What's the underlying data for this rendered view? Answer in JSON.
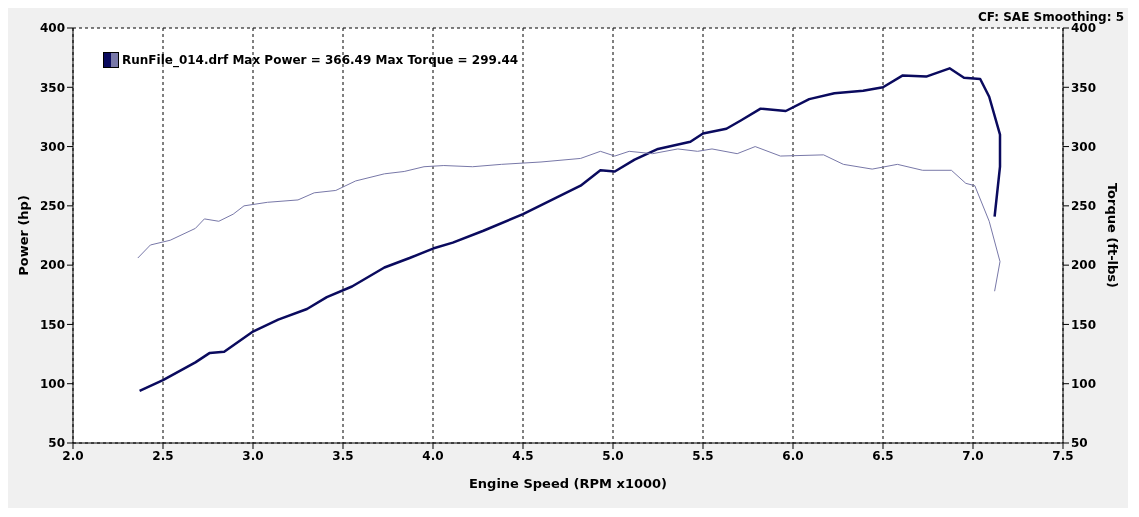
{
  "chart_data": {
    "type": "line",
    "xlabel": "Engine Speed (RPM x1000)",
    "ylabel": "Power (hp)",
    "y2label": "Torque (ft-lbs)",
    "annotations": [
      "RunFile_014.drf Max Power = 366.49 Max Torque = 299.44",
      "CF: SAE  Smoothing: 5"
    ],
    "xlim": [
      2,
      7.5
    ],
    "xticks": [
      {
        "value": 2,
        "label": "2.0"
      },
      2.5,
      {
        "value": 3,
        "label": "3.0"
      },
      3.5,
      {
        "value": 4,
        "label": "4.0"
      },
      4.5,
      {
        "value": 5,
        "label": "5.0"
      },
      5.5,
      {
        "value": 6,
        "label": "6.0"
      },
      6.5,
      {
        "value": 7,
        "label": "7.0"
      },
      7.5
    ],
    "ylim": [
      50,
      400
    ],
    "yticks": [
      50,
      100,
      150,
      200,
      250,
      300,
      350,
      400
    ],
    "y2lim": [
      50,
      400
    ],
    "y2ticks": [
      50,
      100,
      150,
      200,
      250,
      300,
      350,
      400
    ],
    "grid": true,
    "marker": "none",
    "line_style": "solid",
    "series": [
      {
        "color": "#0a0a5e",
        "x": [
          2.37,
          2.5,
          2.68,
          2.76,
          2.84,
          3.0,
          3.14,
          3.3,
          3.41,
          3.55,
          3.73,
          3.87,
          4.0,
          4.11,
          4.28,
          4.5,
          4.66,
          4.82,
          4.93,
          5.01,
          5.12,
          5.25,
          5.43,
          5.5,
          5.63,
          5.71,
          5.82,
          5.96,
          6.09,
          6.23,
          6.39,
          6.5,
          6.61,
          6.74,
          6.87,
          6.95,
          7.04,
          7.09,
          7.15,
          7.15,
          7.12
        ],
        "values": [
          94,
          103,
          118,
          126,
          127,
          144,
          154,
          163,
          173,
          182,
          198,
          206,
          214,
          219,
          229,
          243,
          255,
          267,
          280,
          279,
          289,
          298,
          304,
          311,
          315,
          322,
          332,
          330,
          340,
          345,
          347,
          350,
          360,
          359,
          366,
          358,
          357,
          342,
          310,
          283,
          241
        ]
      },
      {
        "color": "#7878a8",
        "axis": "y2",
        "x": [
          2.36,
          2.43,
          2.54,
          2.68,
          2.73,
          2.81,
          2.89,
          2.95,
          3.08,
          3.25,
          3.34,
          3.46,
          3.57,
          3.73,
          3.84,
          3.95,
          4.06,
          4.22,
          4.38,
          4.6,
          4.82,
          4.93,
          5.01,
          5.09,
          5.22,
          5.36,
          5.47,
          5.55,
          5.69,
          5.79,
          5.93,
          6.17,
          6.28,
          6.44,
          6.58,
          6.72,
          6.88,
          6.96,
          7.01,
          7.09,
          7.15,
          7.12
        ],
        "values": [
          206,
          217,
          221,
          231,
          239,
          237,
          243,
          250,
          253,
          255,
          261,
          263,
          271,
          277,
          279,
          283,
          284,
          283,
          285,
          287,
          290,
          296,
          292,
          296,
          294,
          298,
          296,
          298,
          294,
          300,
          292,
          293,
          285,
          281,
          285,
          280,
          280,
          269,
          267,
          237,
          203,
          178
        ]
      }
    ]
  }
}
